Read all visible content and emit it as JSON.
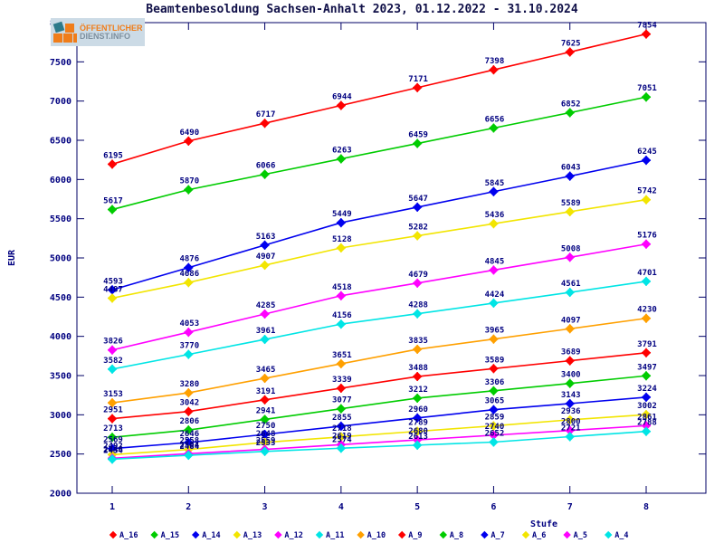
{
  "title": "Beamtenbesoldung Sachsen-Anhalt 2023, 01.12.2022 - 31.10.2024",
  "logo": {
    "line1": "ÖFFENTLICHER",
    "line2": "DIENST.INFO"
  },
  "colors": {
    "axis": "#000066",
    "label_text": "#000080",
    "title_text": "#101048",
    "logo_bg": "#ccdbe6",
    "logo_orange": "#f07d1a",
    "logo_teal": "#2e7a8a",
    "logo_gray": "#7d8f9e"
  },
  "chart_data": {
    "type": "line",
    "title": "Beamtenbesoldung Sachsen-Anhalt 2023, 01.12.2022 - 31.10.2024",
    "xlabel": "Stufe",
    "ylabel": "EUR",
    "x": [
      1,
      2,
      3,
      4,
      5,
      6,
      7,
      8
    ],
    "xticks": [
      "1",
      "2",
      "3",
      "4",
      "5",
      "6",
      "7",
      "8"
    ],
    "ylim": [
      2000,
      8000
    ],
    "yticks": [
      2000,
      2500,
      3000,
      3500,
      4000,
      4500,
      5000,
      5500,
      6000,
      6500,
      7000,
      7500,
      8000
    ],
    "grid": false,
    "legend_position": "bottom",
    "point_labels": true,
    "series": [
      {
        "name": "A_16",
        "color": "#ff0000",
        "values": [
          6195,
          6490,
          6717,
          6944,
          7171,
          7398,
          7625,
          7854
        ]
      },
      {
        "name": "A_15",
        "color": "#00cc00",
        "values": [
          5617,
          5870,
          6066,
          6263,
          6459,
          6656,
          6852,
          7051
        ]
      },
      {
        "name": "A_14",
        "color": "#0000ee",
        "values": [
          4593,
          4876,
          5163,
          5449,
          5647,
          5845,
          6043,
          6245
        ]
      },
      {
        "name": "A_13",
        "color": "#f2e500",
        "values": [
          4487,
          4686,
          4907,
          5128,
          5282,
          5436,
          5589,
          5742
        ]
      },
      {
        "name": "A_12",
        "color": "#ff00ff",
        "values": [
          3826,
          4053,
          4285,
          4518,
          4679,
          4845,
          5008,
          5176
        ]
      },
      {
        "name": "A_11",
        "color": "#00e5e5",
        "values": [
          3582,
          3770,
          3961,
          4156,
          4288,
          4424,
          4561,
          4701
        ]
      },
      {
        "name": "A_10",
        "color": "#ffa000",
        "values": [
          3153,
          3280,
          3465,
          3651,
          3835,
          3965,
          4097,
          4230
        ]
      },
      {
        "name": "A_9",
        "color": "#ff0000",
        "values": [
          2951,
          3042,
          3191,
          3339,
          3488,
          3589,
          3689,
          3791
        ]
      },
      {
        "name": "A_8",
        "color": "#00cc00",
        "values": [
          2713,
          2806,
          2941,
          3077,
          3212,
          3306,
          3400,
          3497
        ]
      },
      {
        "name": "A_7",
        "color": "#0000ee",
        "values": [
          2569,
          2646,
          2750,
          2855,
          2960,
          3065,
          3143,
          3224
        ]
      },
      {
        "name": "A_6",
        "color": "#f2e500",
        "values": [
          2492,
          2558,
          2648,
          2718,
          2789,
          2859,
          2936,
          3002
        ]
      },
      {
        "name": "A_5",
        "color": "#ff00ff",
        "values": [
          2446,
          2504,
          2559,
          2619,
          2680,
          2740,
          2800,
          2861
        ]
      },
      {
        "name": "A_4",
        "color": "#00e5e5",
        "values": [
          2434,
          2484,
          2533,
          2574,
          2613,
          2652,
          2721,
          2788
        ]
      }
    ]
  }
}
